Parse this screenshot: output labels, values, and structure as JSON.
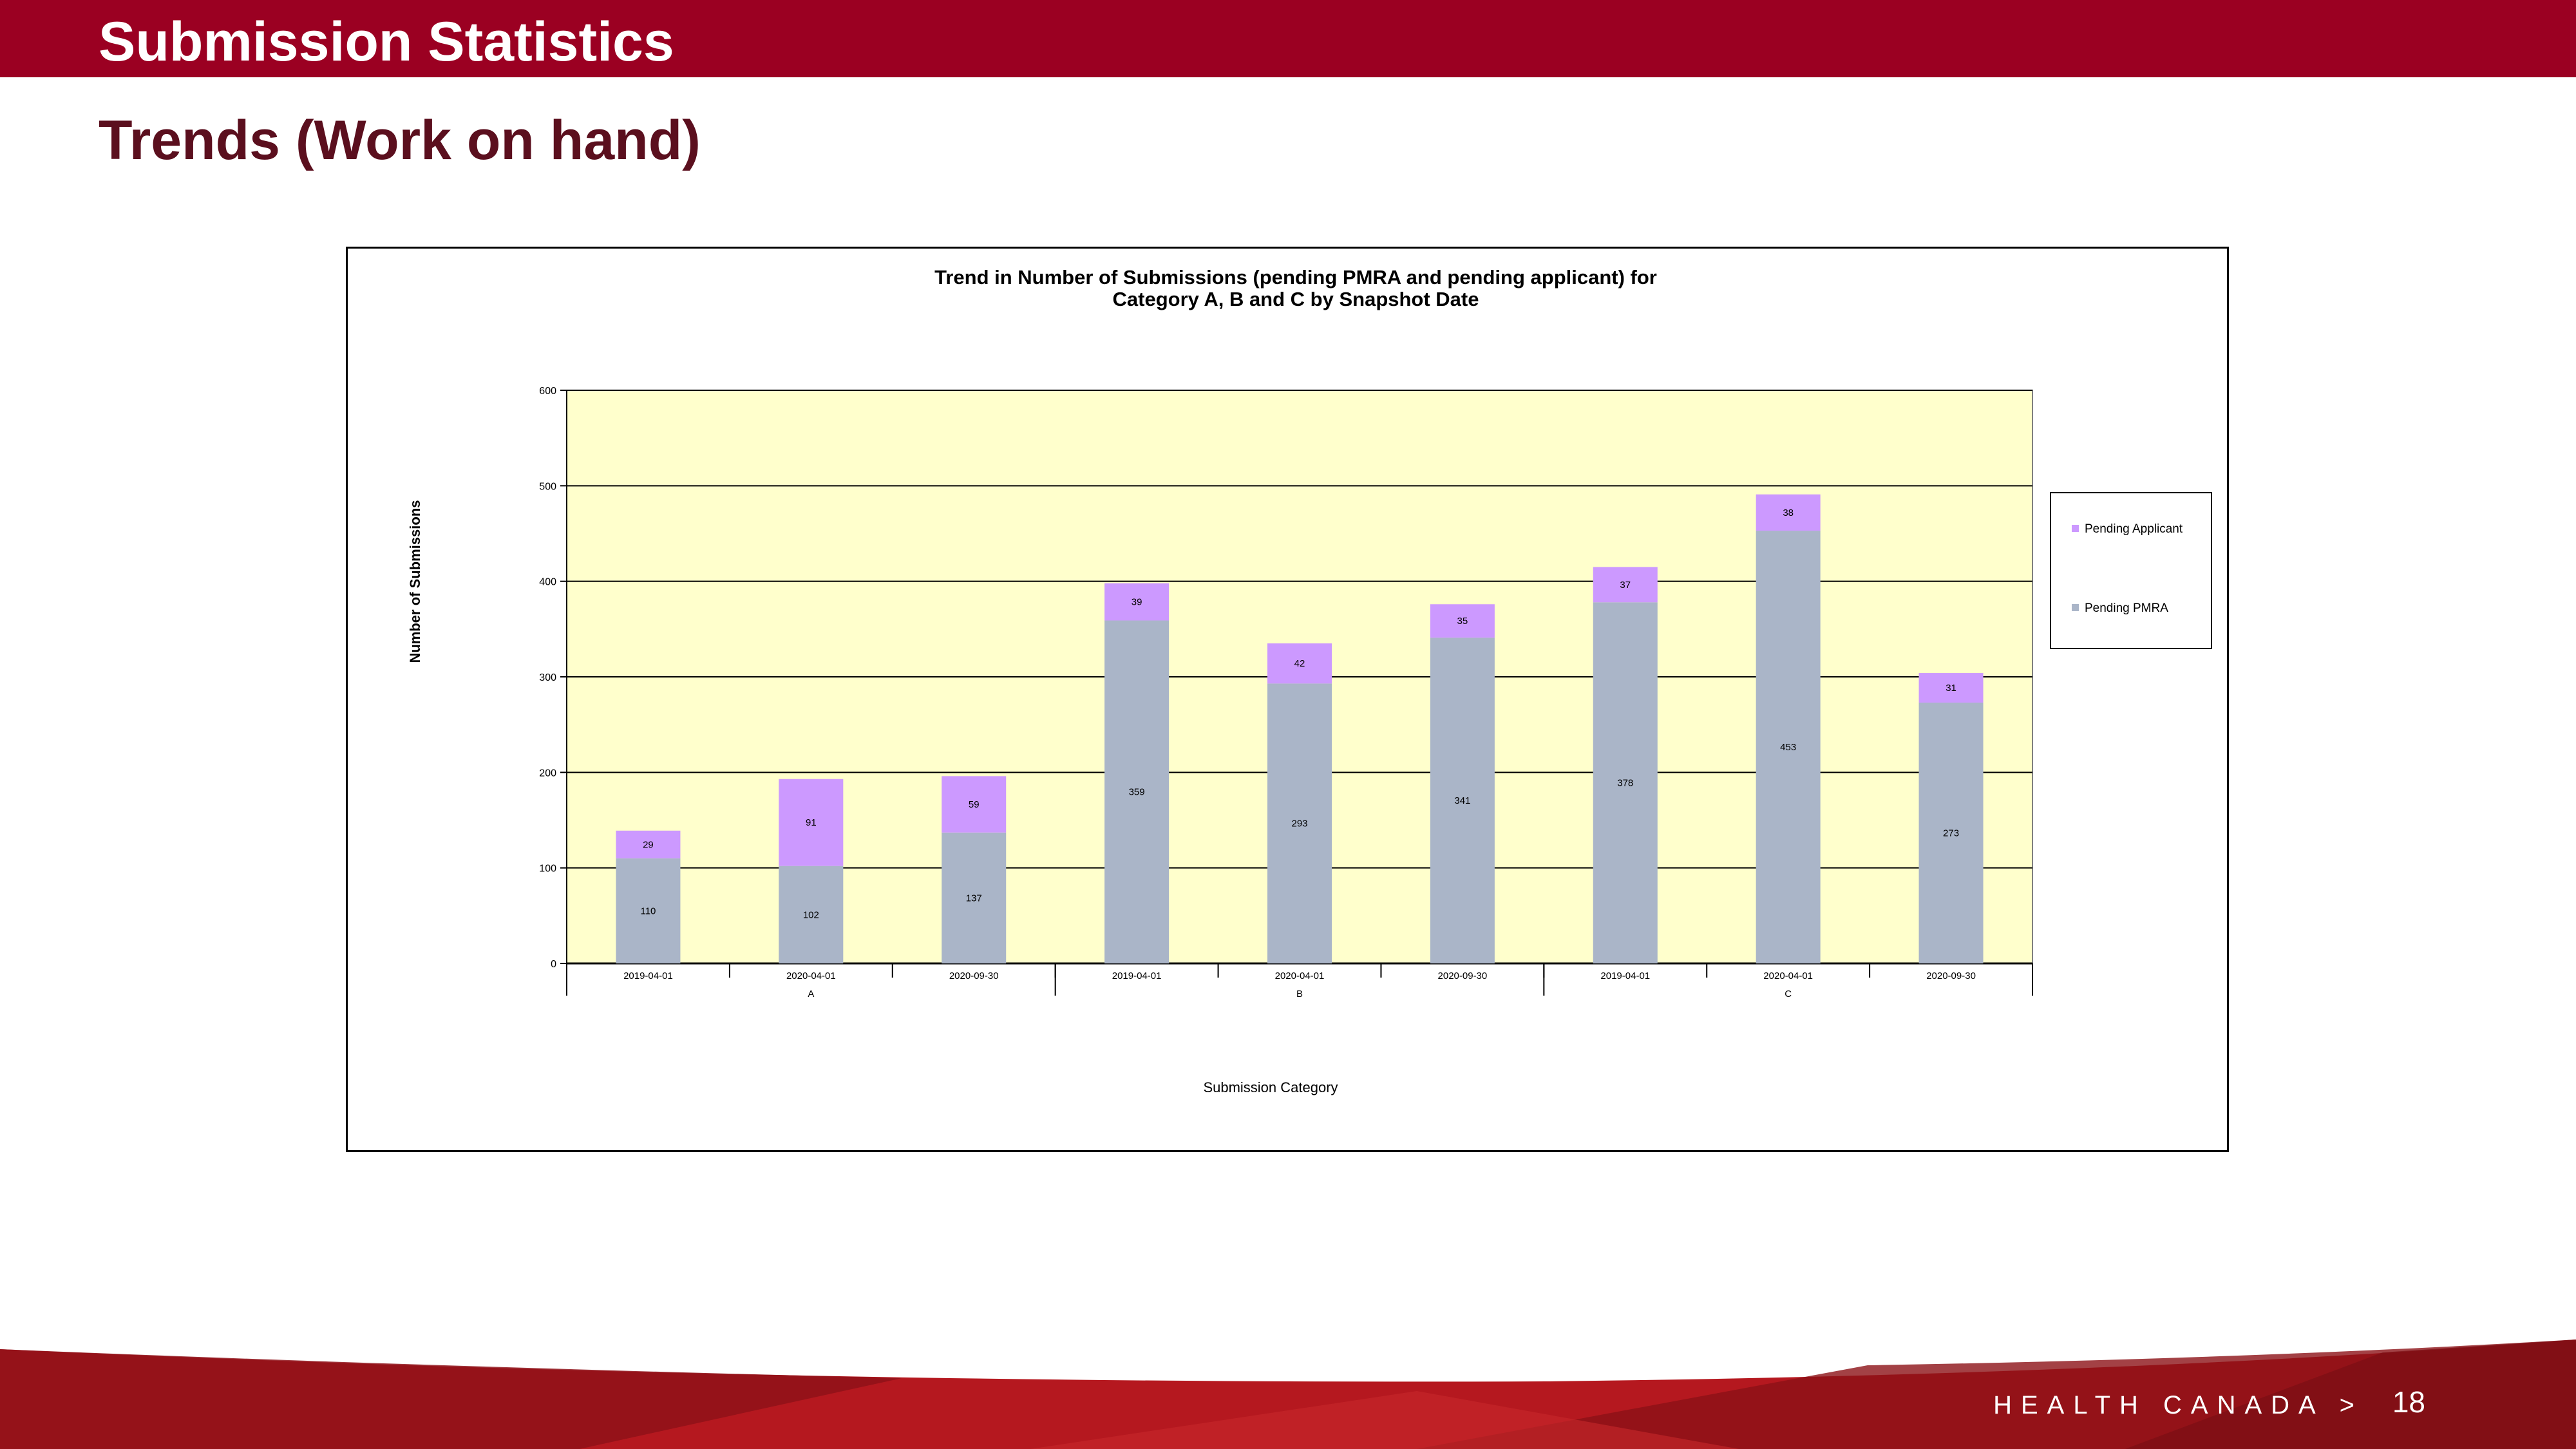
{
  "slide": {
    "title": "Submission Statistics",
    "subtitle": "Trends (Work on hand)",
    "footer_brand": "HEALTH CANADA >",
    "page_number": "18"
  },
  "colors": {
    "header": "#9b0022",
    "subtitle": "#5b0f1e",
    "plot_background": "#ffffcc",
    "pending_pmra": "#aab5c8",
    "pending_applicant": "#cc99ff"
  },
  "chart_data": {
    "type": "bar",
    "stacked": true,
    "title_lines": [
      "Trend in Number of Submissions (pending PMRA and pending applicant) for",
      "Category A, B and C by Snapshot Date"
    ],
    "xlabel": "Submission Category",
    "ylabel": "Number of Submissions",
    "ylim": [
      0,
      600
    ],
    "yticks": [
      0,
      100,
      200,
      300,
      400,
      500,
      600
    ],
    "grid": true,
    "legend_position": "right",
    "groups": [
      "A",
      "B",
      "C"
    ],
    "categories": [
      "2019-04-01",
      "2020-04-01",
      "2020-09-30",
      "2019-04-01",
      "2020-04-01",
      "2020-09-30",
      "2019-04-01",
      "2020-04-01",
      "2020-09-30"
    ],
    "series": [
      {
        "name": "Pending PMRA",
        "values": [
          110,
          102,
          137,
          359,
          293,
          341,
          378,
          453,
          273
        ]
      },
      {
        "name": "Pending Applicant",
        "values": [
          29,
          91,
          59,
          39,
          42,
          35,
          37,
          38,
          31
        ]
      }
    ],
    "legend_order": [
      "Pending Applicant",
      "Pending PMRA"
    ]
  }
}
